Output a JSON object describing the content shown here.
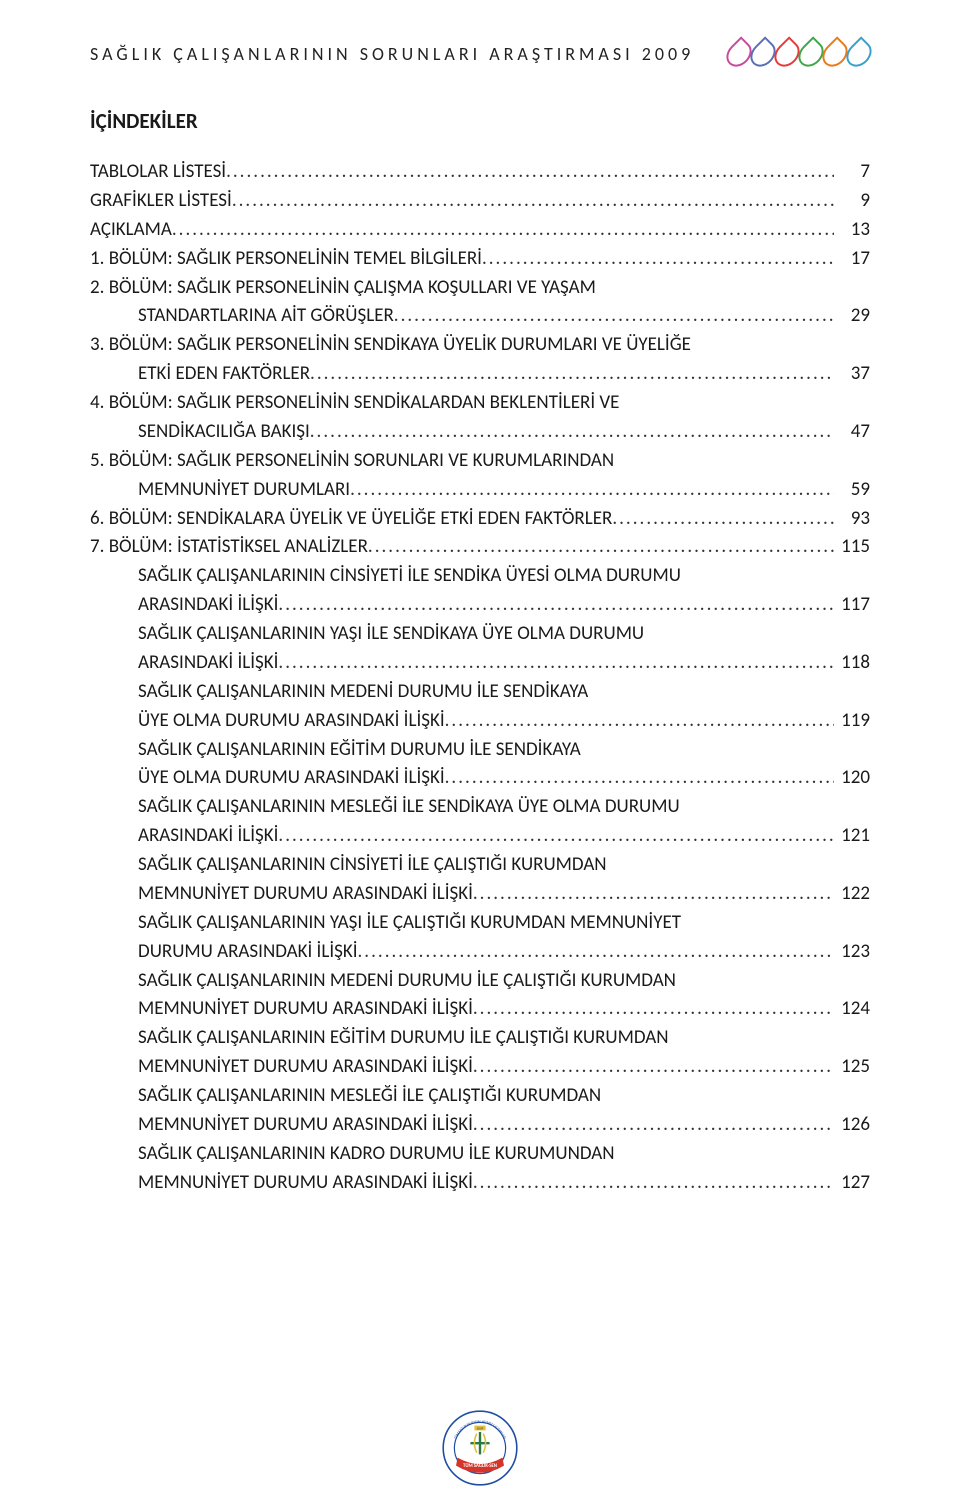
{
  "header": {
    "title": "SAĞLIK ÇALIŞANLARININ SORUNLARI ARAŞTIRMASI 2009",
    "drop_colors": [
      "#c94a9c",
      "#5a6fb4",
      "#e63b3b",
      "#3fa64a",
      "#e87b1c",
      "#3aa0c9"
    ]
  },
  "heading": "İÇİNDEKİLER",
  "toc": [
    {
      "lines": [
        "TABLOLAR LİSTESİ"
      ],
      "page": "7",
      "indent": false
    },
    {
      "lines": [
        "GRAFİKLER LİSTESİ"
      ],
      "page": "9",
      "indent": false
    },
    {
      "lines": [
        "AÇIKLAMA"
      ],
      "page": "13",
      "indent": false
    },
    {
      "lines": [
        "1. BÖLÜM: SAĞLIK PERSONELİNİN TEMEL BİLGİLERİ"
      ],
      "page": "17",
      "indent": false
    },
    {
      "lines": [
        "2. BÖLÜM: SAĞLIK PERSONELİNİN ÇALIŞMA KOŞULLARI VE YAŞAM",
        "STANDARTLARINA AİT GÖRÜŞLER"
      ],
      "page": "29",
      "indent": false
    },
    {
      "lines": [
        "3. BÖLÜM: SAĞLIK PERSONELİNİN SENDİKAYA ÜYELİK DURUMLARI VE ÜYELİĞE",
        "ETKİ EDEN FAKTÖRLER"
      ],
      "page": "37",
      "indent": false
    },
    {
      "lines": [
        "4. BÖLÜM: SAĞLIK PERSONELİNİN SENDİKALARDAN BEKLENTİLERİ VE",
        "SENDİKACILIĞA BAKIŞI"
      ],
      "page": "47",
      "indent": false
    },
    {
      "lines": [
        "5. BÖLÜM: SAĞLIK PERSONELİNİN SORUNLARI VE KURUMLARINDAN",
        "MEMNUNİYET DURUMLARI"
      ],
      "page": "59",
      "indent": false
    },
    {
      "lines": [
        "6. BÖLÜM: SENDİKALARA ÜYELİK VE ÜYELİĞE ETKİ EDEN FAKTÖRLER"
      ],
      "page": "93",
      "indent": false
    },
    {
      "lines": [
        "7. BÖLÜM: İSTATİSTİKSEL ANALİZLER"
      ],
      "page": "115",
      "indent": false
    },
    {
      "lines": [
        "SAĞLIK ÇALIŞANLARININ CİNSİYETİ İLE SENDİKA ÜYESİ OLMA DURUMU",
        "ARASINDAKİ İLİŞKİ"
      ],
      "page": "117",
      "indent": true
    },
    {
      "lines": [
        "SAĞLIK ÇALIŞANLARININ YAŞI İLE SENDİKAYA ÜYE OLMA DURUMU",
        "ARASINDAKİ İLİŞKİ"
      ],
      "page": "118",
      "indent": true
    },
    {
      "lines": [
        "SAĞLIK ÇALIŞANLARININ MEDENİ DURUMU İLE SENDİKAYA",
        "ÜYE OLMA DURUMU ARASINDAKİ İLİŞKİ"
      ],
      "page": "119",
      "indent": true
    },
    {
      "lines": [
        "SAĞLIK ÇALIŞANLARININ EĞİTİM DURUMU İLE SENDİKAYA",
        "ÜYE OLMA DURUMU ARASINDAKİ İLİŞKİ"
      ],
      "page": "120",
      "indent": true
    },
    {
      "lines": [
        "SAĞLIK ÇALIŞANLARININ MESLEĞİ İLE SENDİKAYA ÜYE OLMA DURUMU",
        "ARASINDAKİ İLİŞKİ"
      ],
      "page": "121",
      "indent": true
    },
    {
      "lines": [
        "SAĞLIK ÇALIŞANLARININ CİNSİYETİ İLE ÇALIŞTIĞI KURUMDAN",
        "MEMNUNİYET DURUMU ARASINDAKİ İLİŞKİ"
      ],
      "page": "122",
      "indent": true
    },
    {
      "lines": [
        "SAĞLIK ÇALIŞANLARININ YAŞI İLE ÇALIŞTIĞI KURUMDAN MEMNUNİYET",
        "DURUMU ARASINDAKİ İLİŞKİ"
      ],
      "page": "123",
      "indent": true
    },
    {
      "lines": [
        "SAĞLIK ÇALIŞANLARININ MEDENİ DURUMU İLE ÇALIŞTIĞI KURUMDAN",
        "MEMNUNİYET DURUMU ARASINDAKİ İLİŞKİ"
      ],
      "page": "124",
      "indent": true
    },
    {
      "lines": [
        "SAĞLIK ÇALIŞANLARININ EĞİTİM DURUMU İLE ÇALIŞTIĞI KURUMDAN",
        "MEMNUNİYET DURUMU ARASINDAKİ İLİŞKİ"
      ],
      "page": "125",
      "indent": true
    },
    {
      "lines": [
        "SAĞLIK ÇALIŞANLARININ MESLEĞİ İLE ÇALIŞTIĞI KURUMDAN",
        "MEMNUNİYET DURUMU ARASINDAKİ İLİŞKİ"
      ],
      "page": "126",
      "indent": true
    },
    {
      "lines": [
        "SAĞLIK ÇALIŞANLARININ KADRO DURUMU İLE KURUMUNDAN",
        "MEMNUNİYET DURUMU ARASINDAKİ İLİŞKİ"
      ],
      "page": "127",
      "indent": true
    }
  ],
  "logo": {
    "top_text": "TÜM SAĞLIK VE SOSYAL HİZMET ÇALIŞANLARI",
    "bottom_text": "TÜM SAĞLIK-SEN",
    "year": "2009",
    "ribbon_color": "#d4342a",
    "ring_color": "#1f4fa3",
    "inner_bg": "#ffffff"
  }
}
